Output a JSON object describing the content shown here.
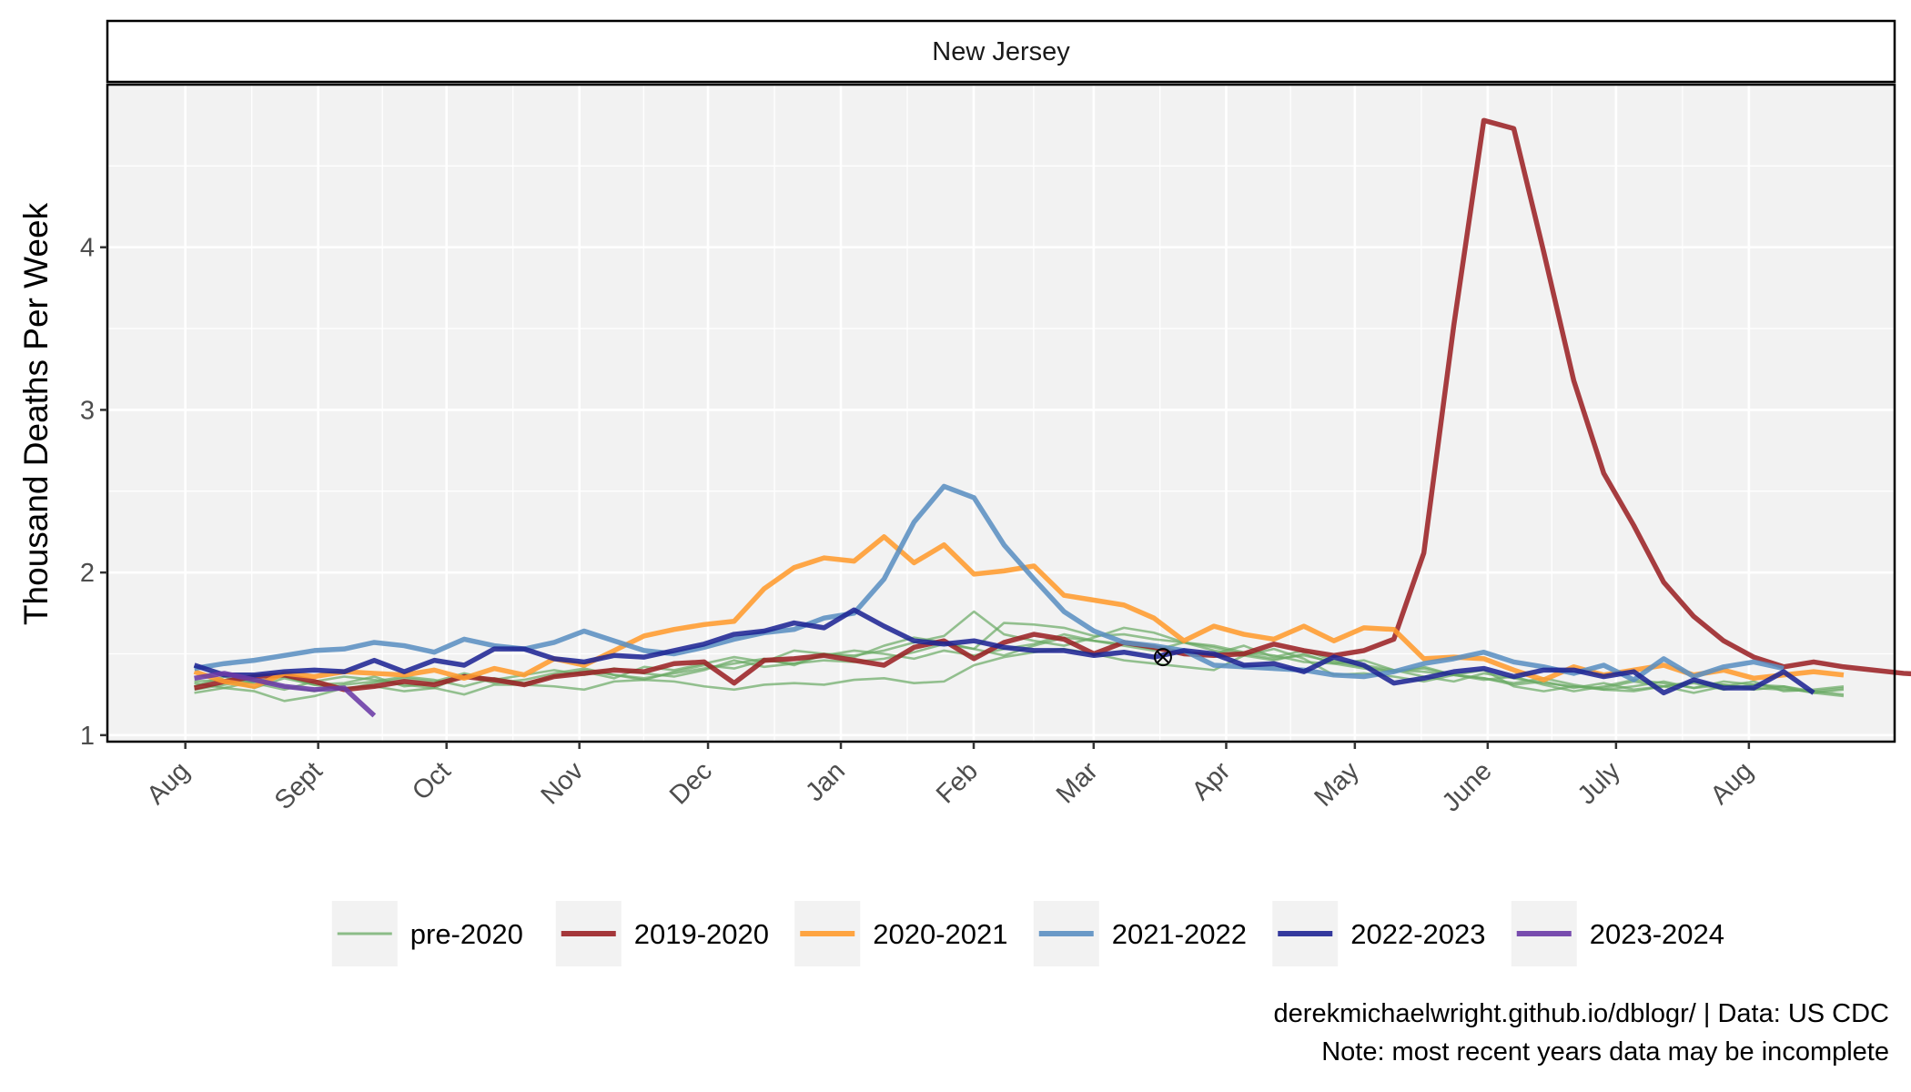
{
  "chart_data": {
    "type": "line",
    "panel_title": "New Jersey",
    "ylabel": "Thousand Deaths Per Week",
    "xlabel": "",
    "ylim": [
      0.96,
      5.0
    ],
    "yticks": [
      1,
      2,
      3,
      4
    ],
    "x_unit": "weeks since Aug 1",
    "xlim": [
      -2.6,
      57.0
    ],
    "month_ticks": [
      {
        "label": "Aug",
        "x": 0
      },
      {
        "label": "Sept",
        "x": 4.43
      },
      {
        "label": "Oct",
        "x": 8.71
      },
      {
        "label": "Nov",
        "x": 13.14
      },
      {
        "label": "Dec",
        "x": 17.43
      },
      {
        "label": "Jan",
        "x": 21.86
      },
      {
        "label": "Feb",
        "x": 26.29
      },
      {
        "label": "Mar",
        "x": 30.29
      },
      {
        "label": "Apr",
        "x": 34.71
      },
      {
        "label": "May",
        "x": 39.0
      },
      {
        "label": "June",
        "x": 43.43
      },
      {
        "label": "July",
        "x": 47.71
      },
      {
        "label": "Aug",
        "x": 52.14
      }
    ],
    "grid": true,
    "legend_position": "bottom",
    "marker": {
      "x": 32.6,
      "y": 1.48
    },
    "colors": {
      "pre-2020": "#6aaa64",
      "2019-2020": "#9b2226",
      "2020-2021": "#ff9b2e",
      "2021-2022": "#5b8fc2",
      "2022-2023": "#1f2594",
      "2023-2024": "#6a3aa6"
    },
    "legend": [
      "pre-2020",
      "2019-2020",
      "2020-2021",
      "2021-2022",
      "2022-2023",
      "2023-2024"
    ],
    "series": [
      {
        "name": "pre-2020",
        "start": 0.3,
        "values": [
          1.26,
          1.29,
          1.27,
          1.21,
          1.24,
          1.29,
          1.3,
          1.27,
          1.29,
          1.25,
          1.31,
          1.31,
          1.3,
          1.28,
          1.33,
          1.34,
          1.33,
          1.3,
          1.28,
          1.31,
          1.32,
          1.31,
          1.34,
          1.35,
          1.32,
          1.33,
          1.43,
          1.48,
          1.51,
          1.53,
          1.5,
          1.46,
          1.44,
          1.42,
          1.4,
          1.49,
          1.53,
          1.47,
          1.37,
          1.38,
          1.36,
          1.33,
          1.37,
          1.4,
          1.3,
          1.27,
          1.3,
          1.28,
          1.27,
          1.3,
          1.26,
          1.3,
          1.33,
          1.27,
          1.28,
          1.3
        ]
      },
      {
        "name": "pre-2020",
        "start": 0.3,
        "values": [
          1.33,
          1.34,
          1.29,
          1.35,
          1.31,
          1.32,
          1.36,
          1.3,
          1.32,
          1.36,
          1.34,
          1.37,
          1.4,
          1.37,
          1.41,
          1.38,
          1.36,
          1.4,
          1.46,
          1.42,
          1.44,
          1.46,
          1.45,
          1.47,
          1.51,
          1.56,
          1.53,
          1.69,
          1.68,
          1.66,
          1.61,
          1.62,
          1.59,
          1.57,
          1.55,
          1.51,
          1.49,
          1.45,
          1.44,
          1.46,
          1.4,
          1.39,
          1.37,
          1.35,
          1.31,
          1.33,
          1.29,
          1.32,
          1.28,
          1.3,
          1.33,
          1.31,
          1.29,
          1.28,
          1.27,
          1.25
        ]
      },
      {
        "name": "pre-2020",
        "start": 0.3,
        "values": [
          1.3,
          1.36,
          1.32,
          1.28,
          1.33,
          1.36,
          1.34,
          1.31,
          1.29,
          1.37,
          1.32,
          1.34,
          1.38,
          1.41,
          1.37,
          1.35,
          1.38,
          1.41,
          1.44,
          1.47,
          1.43,
          1.5,
          1.49,
          1.52,
          1.57,
          1.61,
          1.76,
          1.62,
          1.58,
          1.55,
          1.6,
          1.66,
          1.63,
          1.57,
          1.52,
          1.49,
          1.46,
          1.5,
          1.44,
          1.41,
          1.39,
          1.42,
          1.37,
          1.34,
          1.36,
          1.31,
          1.27,
          1.3,
          1.34,
          1.32,
          1.29,
          1.33,
          1.31,
          1.3,
          1.26,
          1.28
        ]
      },
      {
        "name": "pre-2020",
        "start": 0.3,
        "values": [
          1.28,
          1.31,
          1.34,
          1.3,
          1.27,
          1.31,
          1.33,
          1.36,
          1.34,
          1.3,
          1.35,
          1.32,
          1.36,
          1.39,
          1.35,
          1.42,
          1.4,
          1.44,
          1.48,
          1.45,
          1.52,
          1.5,
          1.48,
          1.55,
          1.6,
          1.57,
          1.53,
          1.49,
          1.55,
          1.6,
          1.58,
          1.56,
          1.53,
          1.51,
          1.5,
          1.55,
          1.48,
          1.52,
          1.46,
          1.43,
          1.4,
          1.36,
          1.33,
          1.38,
          1.35,
          1.32,
          1.3,
          1.29,
          1.33,
          1.3,
          1.32,
          1.28,
          1.31,
          1.29,
          1.26,
          1.24
        ]
      },
      {
        "name": "pre-2020",
        "start": 0.3,
        "values": [
          1.32,
          1.29,
          1.33,
          1.36,
          1.31,
          1.28,
          1.32,
          1.35,
          1.33,
          1.38,
          1.34,
          1.31,
          1.36,
          1.4,
          1.37,
          1.34,
          1.39,
          1.43,
          1.41,
          1.46,
          1.44,
          1.49,
          1.52,
          1.5,
          1.47,
          1.52,
          1.49,
          1.53,
          1.56,
          1.62,
          1.58,
          1.55,
          1.52,
          1.57,
          1.54,
          1.5,
          1.47,
          1.49,
          1.45,
          1.42,
          1.39,
          1.41,
          1.37,
          1.35,
          1.32,
          1.35,
          1.31,
          1.28,
          1.3,
          1.33,
          1.29,
          1.31,
          1.28,
          1.3,
          1.27,
          1.29
        ]
      },
      {
        "name": "2019-2020",
        "start": 0.3,
        "values": [
          1.29,
          1.33,
          1.36,
          1.37,
          1.33,
          1.28,
          1.3,
          1.33,
          1.31,
          1.36,
          1.34,
          1.31,
          1.36,
          1.38,
          1.4,
          1.39,
          1.44,
          1.45,
          1.32,
          1.46,
          1.47,
          1.49,
          1.46,
          1.43,
          1.54,
          1.58,
          1.47,
          1.57,
          1.62,
          1.59,
          1.5,
          1.57,
          1.54,
          1.5,
          1.49,
          1.5,
          1.56,
          1.52,
          1.49,
          1.52,
          1.59,
          2.12,
          3.52,
          4.78,
          4.73,
          3.97,
          3.18,
          2.61,
          2.29,
          1.94,
          1.73,
          1.58,
          1.48,
          1.42,
          1.45,
          1.42,
          1.4,
          1.38,
          1.37
        ]
      },
      {
        "name": "2020-2021",
        "start": 0.3,
        "values": [
          1.39,
          1.33,
          1.3,
          1.38,
          1.36,
          1.39,
          1.38,
          1.37,
          1.4,
          1.35,
          1.41,
          1.37,
          1.47,
          1.43,
          1.52,
          1.61,
          1.65,
          1.68,
          1.7,
          1.9,
          2.03,
          2.09,
          2.07,
          2.22,
          2.06,
          2.17,
          1.99,
          2.01,
          2.04,
          1.86,
          1.83,
          1.8,
          1.72,
          1.58,
          1.67,
          1.62,
          1.59,
          1.67,
          1.58,
          1.66,
          1.65,
          1.47,
          1.48,
          1.47,
          1.4,
          1.34,
          1.42,
          1.37,
          1.4,
          1.43,
          1.37,
          1.4,
          1.35,
          1.37,
          1.39,
          1.37
        ]
      },
      {
        "name": "2021-2022",
        "start": 0.3,
        "values": [
          1.41,
          1.44,
          1.46,
          1.49,
          1.52,
          1.53,
          1.57,
          1.55,
          1.51,
          1.59,
          1.55,
          1.53,
          1.57,
          1.64,
          1.58,
          1.52,
          1.5,
          1.54,
          1.59,
          1.63,
          1.65,
          1.72,
          1.75,
          1.96,
          2.31,
          2.53,
          2.46,
          2.17,
          1.96,
          1.76,
          1.64,
          1.57,
          1.55,
          1.52,
          1.43,
          1.42,
          1.41,
          1.4,
          1.37,
          1.36,
          1.39,
          1.44,
          1.47,
          1.51,
          1.45,
          1.42,
          1.38,
          1.43,
          1.34,
          1.47,
          1.36,
          1.42,
          1.45,
          1.41
        ]
      },
      {
        "name": "2022-2023",
        "start": 0.3,
        "values": [
          1.43,
          1.37,
          1.37,
          1.39,
          1.4,
          1.39,
          1.46,
          1.39,
          1.46,
          1.43,
          1.53,
          1.53,
          1.47,
          1.45,
          1.49,
          1.48,
          1.52,
          1.56,
          1.62,
          1.64,
          1.69,
          1.66,
          1.77,
          1.67,
          1.58,
          1.56,
          1.58,
          1.54,
          1.52,
          1.52,
          1.49,
          1.51,
          1.48,
          1.52,
          1.5,
          1.43,
          1.44,
          1.39,
          1.48,
          1.43,
          1.32,
          1.35,
          1.39,
          1.41,
          1.36,
          1.4,
          1.4,
          1.36,
          1.39,
          1.26,
          1.34,
          1.29,
          1.29,
          1.39,
          1.26
        ]
      },
      {
        "name": "2023-2024",
        "start": 0.3,
        "values": [
          1.35,
          1.38,
          1.34,
          1.3,
          1.28,
          1.29,
          1.12
        ]
      }
    ]
  },
  "captions": {
    "line1": "derekmichaelwright.github.io/dblogr/ | Data: US CDC",
    "line2": "Note: most recent years data may be incomplete"
  }
}
